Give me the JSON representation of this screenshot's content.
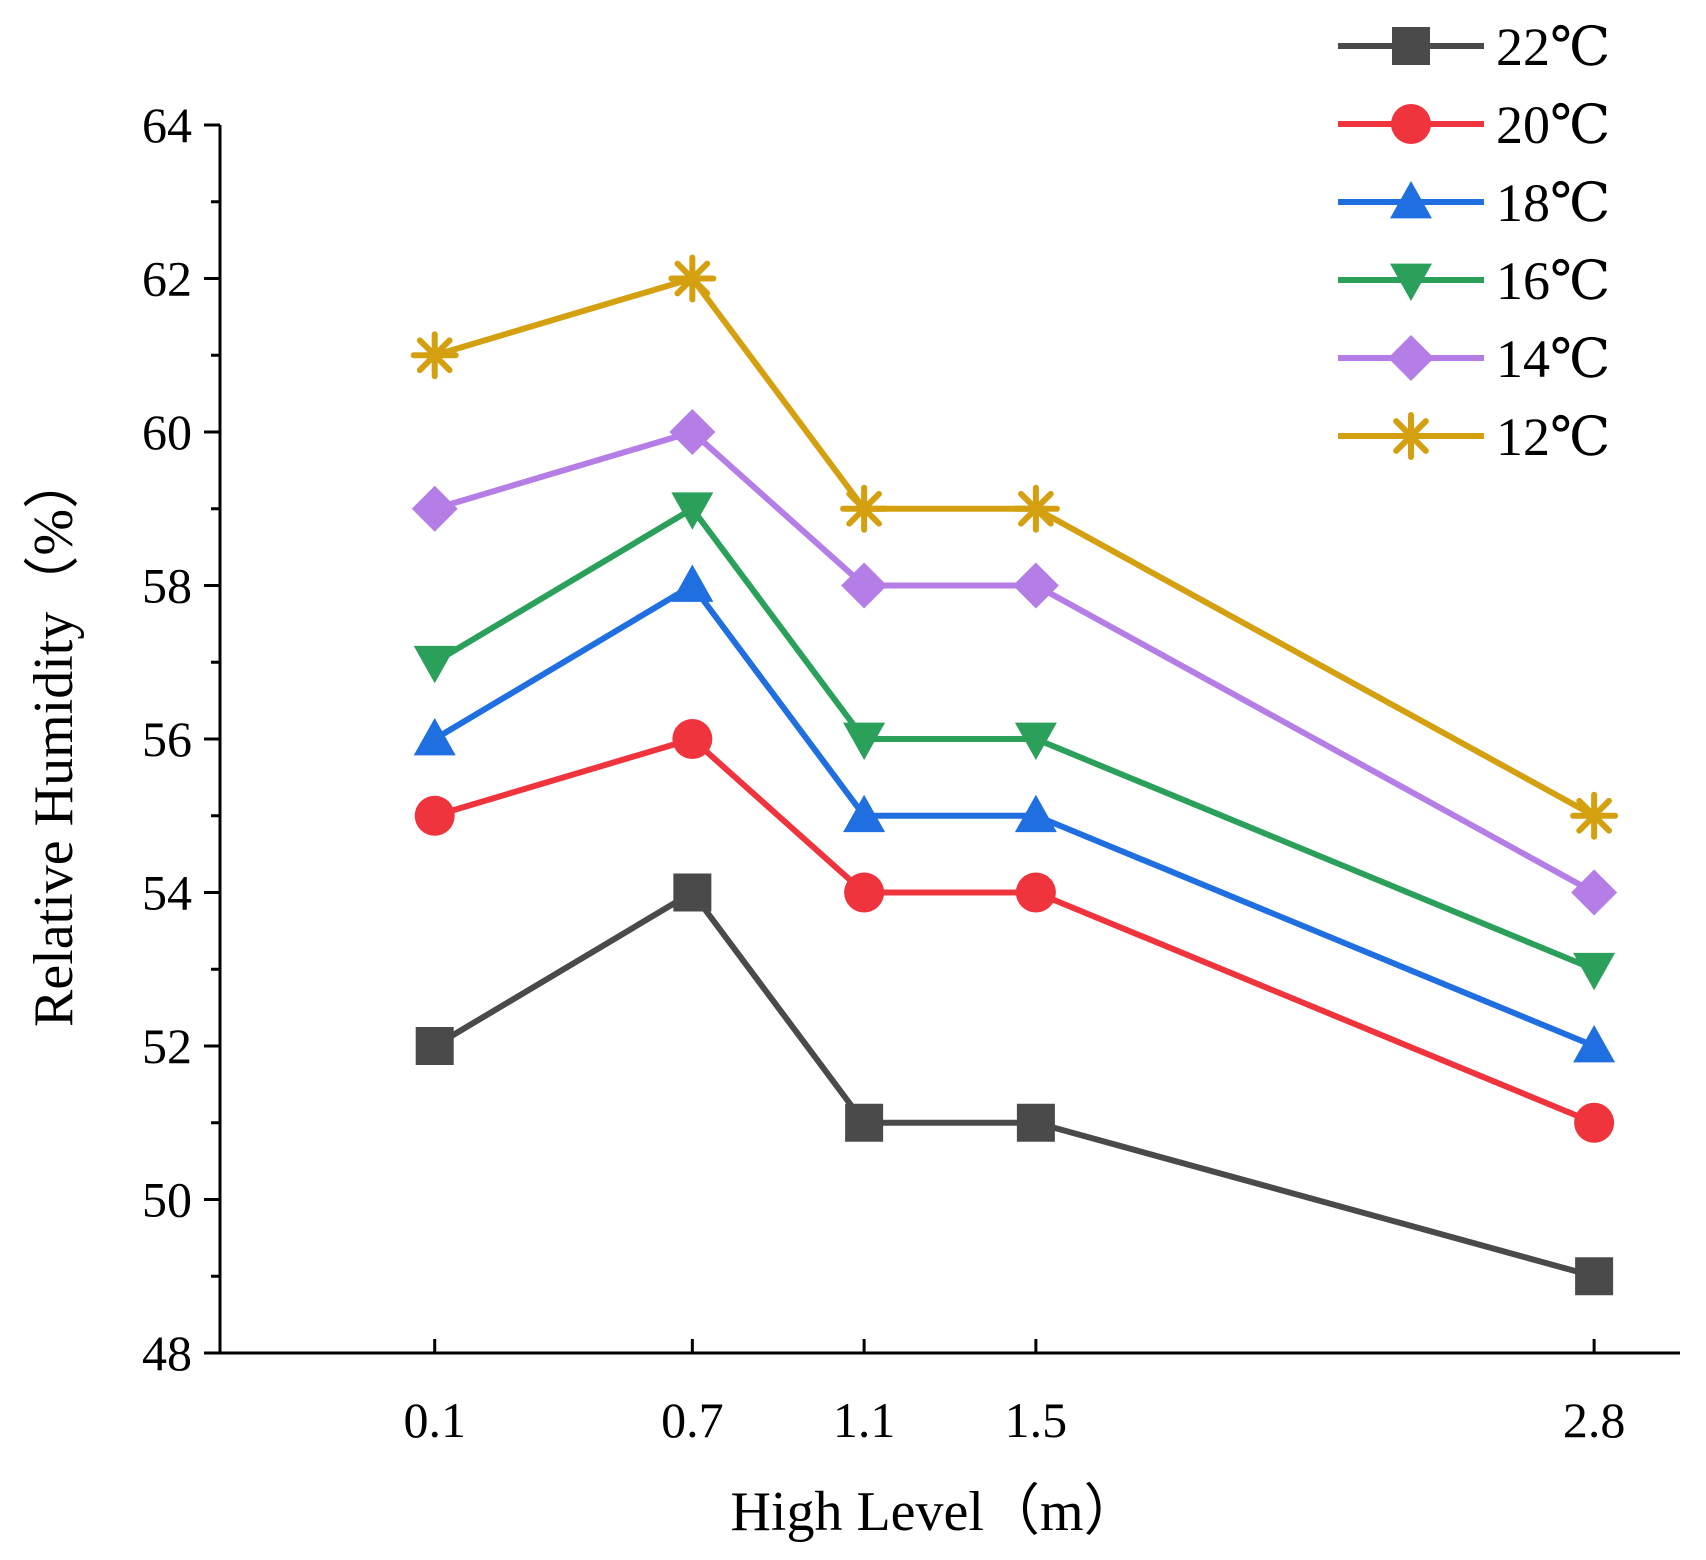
{
  "chart_data": {
    "type": "line",
    "title": "",
    "xlabel": "High Level（m）",
    "ylabel": "Relative Humidity（%）",
    "x": [
      0.1,
      0.7,
      1.1,
      1.5,
      2.8
    ],
    "x_tick_labels": [
      "0.1",
      "0.7",
      "1.1",
      "1.5",
      "2.8"
    ],
    "ylim": [
      48,
      64
    ],
    "y_ticks": [
      48,
      50,
      52,
      54,
      56,
      58,
      60,
      62,
      64
    ],
    "y_tick_labels": [
      "48",
      "50",
      "52",
      "54",
      "56",
      "58",
      "60",
      "62",
      "64"
    ],
    "grid": false,
    "legend_position": "top-right",
    "series": [
      {
        "name": "22℃",
        "color": "#4a4a4a",
        "marker": "square",
        "values": [
          52,
          54,
          51,
          51,
          49
        ]
      },
      {
        "name": "20℃",
        "color": "#f0343e",
        "marker": "circle",
        "values": [
          55,
          56,
          54,
          54,
          51
        ]
      },
      {
        "name": "18℃",
        "color": "#1f6fe0",
        "marker": "triangle-up",
        "values": [
          56,
          58,
          55,
          55,
          52
        ]
      },
      {
        "name": "16℃",
        "color": "#2aa05a",
        "marker": "triangle-down",
        "values": [
          57,
          59,
          56,
          56,
          53
        ]
      },
      {
        "name": "14℃",
        "color": "#b47ee6",
        "marker": "diamond",
        "values": [
          59,
          60,
          58,
          58,
          54
        ]
      },
      {
        "name": "12℃",
        "color": "#d4a010",
        "marker": "asterisk",
        "values": [
          61,
          62,
          59,
          59,
          55
        ]
      }
    ]
  }
}
